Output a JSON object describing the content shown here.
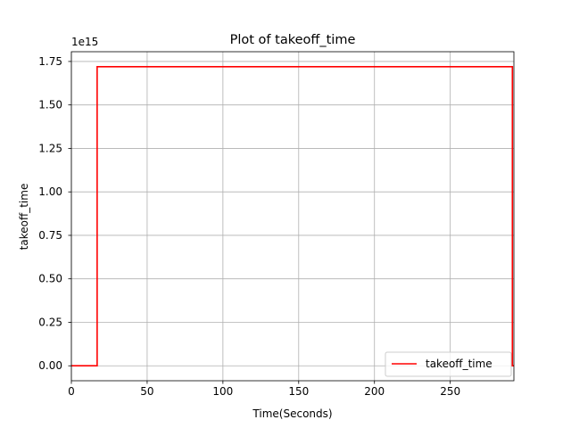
{
  "chart_data": {
    "type": "line",
    "title": "Plot of takeoff_time",
    "xlabel": "Time(Seconds)",
    "ylabel": "takeoff_time",
    "y_offset_label": "1e15",
    "xlim": [
      0,
      292
    ],
    "ylim": [
      -0.086,
      1.806
    ],
    "x_ticks": [
      0,
      50,
      100,
      150,
      200,
      250
    ],
    "x_tick_labels": [
      "0",
      "50",
      "100",
      "150",
      "200",
      "250"
    ],
    "y_ticks": [
      0.0,
      0.25,
      0.5,
      0.75,
      1.0,
      1.25,
      1.5,
      1.75
    ],
    "y_tick_labels": [
      "0.00",
      "0.25",
      "0.50",
      "0.75",
      "1.00",
      "1.25",
      "1.50",
      "1.75"
    ],
    "grid": true,
    "legend_position": "lower-right",
    "series": [
      {
        "name": "takeoff_time",
        "color": "#ff0000",
        "x": [
          0,
          17,
          17,
          291,
          291,
          292
        ],
        "y": [
          0,
          0,
          1.72,
          1.72,
          0,
          0
        ]
      }
    ]
  }
}
